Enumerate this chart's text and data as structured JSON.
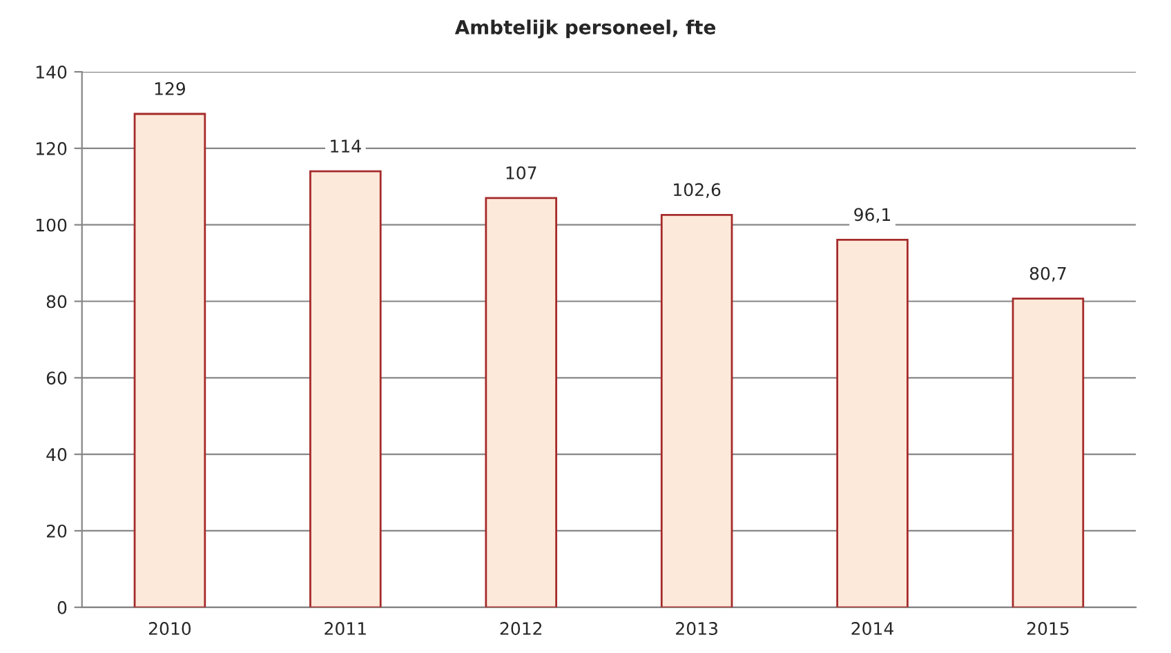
{
  "chart_data": {
    "type": "bar",
    "title": "Ambtelijk personeel, fte",
    "categories": [
      "2010",
      "2011",
      "2012",
      "2013",
      "2014",
      "2015"
    ],
    "values": [
      129,
      114,
      107,
      102.6,
      96.1,
      80.7
    ],
    "value_labels": [
      "129",
      "114",
      "107",
      "102,6",
      "96,1",
      "80,7"
    ],
    "color": "#fde9d9",
    "ylim": [
      0,
      140
    ],
    "yticks": [
      0,
      20,
      40,
      60,
      80,
      100,
      120,
      140
    ],
    "grid": "y",
    "legend": false
  }
}
